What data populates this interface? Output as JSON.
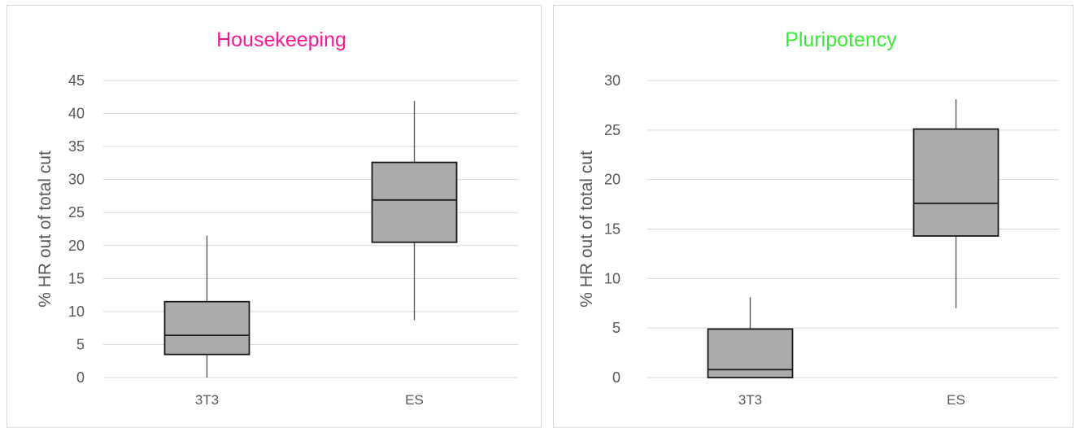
{
  "chart_data": [
    {
      "type": "box",
      "title": "Housekeeping",
      "title_color": "#ff1493",
      "ylabel": "% HR out of total cut",
      "xlabel": "",
      "ylim": [
        0,
        45
      ],
      "yticks": [
        0,
        5,
        10,
        15,
        20,
        25,
        30,
        35,
        40,
        45
      ],
      "grid": true,
      "categories": [
        "3T3",
        "ES"
      ],
      "boxes": [
        {
          "category": "3T3",
          "min": 0,
          "q1": 3.5,
          "median": 6.4,
          "q3": 11.5,
          "max": 21.5
        },
        {
          "category": "ES",
          "min": 8.7,
          "q1": 20.5,
          "median": 26.9,
          "q3": 32.6,
          "max": 41.9
        }
      ],
      "box_fill": "#ababab"
    },
    {
      "type": "box",
      "title": "Pluripotency",
      "title_color": "#33ee33",
      "ylabel": "% HR out of total cut",
      "xlabel": "",
      "ylim": [
        0,
        30
      ],
      "yticks": [
        0,
        5,
        10,
        15,
        20,
        25,
        30
      ],
      "grid": true,
      "categories": [
        "3T3",
        "ES"
      ],
      "boxes": [
        {
          "category": "3T3",
          "min": 0,
          "q1": 0,
          "median": 0.8,
          "q3": 4.9,
          "max": 8.1
        },
        {
          "category": "ES",
          "min": 7.0,
          "q1": 14.3,
          "median": 17.6,
          "q3": 25.1,
          "max": 28.1
        }
      ],
      "box_fill": "#ababab"
    }
  ]
}
